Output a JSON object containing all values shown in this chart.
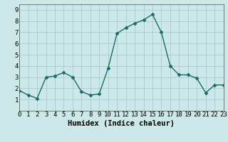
{
  "x": [
    0,
    1,
    2,
    3,
    4,
    5,
    6,
    7,
    8,
    9,
    10,
    11,
    12,
    13,
    14,
    15,
    16,
    17,
    18,
    19,
    20,
    21,
    22,
    23
  ],
  "y": [
    1.8,
    1.4,
    1.1,
    3.0,
    3.1,
    3.4,
    3.0,
    1.7,
    1.4,
    1.5,
    3.8,
    6.9,
    7.4,
    7.8,
    8.1,
    8.6,
    7.0,
    4.0,
    3.2,
    3.2,
    2.9,
    1.6,
    2.3,
    2.3
  ],
  "xlabel": "Humidex (Indice chaleur)",
  "xlim": [
    0,
    23
  ],
  "ylim": [
    0,
    9.5
  ],
  "yticks": [
    1,
    2,
    3,
    4,
    5,
    6,
    7,
    8,
    9
  ],
  "xticks": [
    0,
    1,
    2,
    3,
    4,
    5,
    6,
    7,
    8,
    9,
    10,
    11,
    12,
    13,
    14,
    15,
    16,
    17,
    18,
    19,
    20,
    21,
    22,
    23
  ],
  "line_color": "#1a6b6b",
  "marker_color": "#1a6b6b",
  "bg_color": "#cce8e8",
  "grid_color": "#aacccc",
  "axes_bg": "#cce8e8",
  "tick_label_fontsize": 6.5,
  "xlabel_fontsize": 7.5,
  "markersize": 2.5,
  "linewidth": 1.0
}
